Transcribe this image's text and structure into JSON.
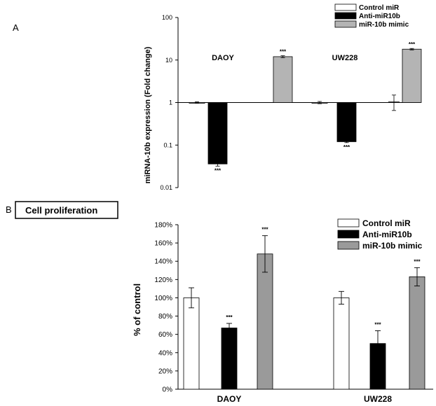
{
  "colors": {
    "control": "#ffffff",
    "anti": "#000000",
    "mimic": "#b4b4b4",
    "mimicB": "#9a9a9a"
  },
  "chart_data": [
    {
      "panel": "A",
      "type": "bar",
      "scale": "log",
      "ylabel": "miRNA-10b  expression (Fold change)",
      "ylim": [
        0.01,
        100
      ],
      "yticks": [
        "0.01",
        "0.1",
        "1",
        "10",
        "100"
      ],
      "categories": [
        "DAOY",
        "UW228"
      ],
      "series": [
        {
          "name": "Control miR",
          "values": [
            1.0,
            1.0
          ],
          "err": [
            0.04,
            0.06
          ]
        },
        {
          "name": "Anti-miR10b",
          "values": [
            0.036,
            0.12
          ],
          "err": [
            0.004,
            0.006
          ]
        },
        {
          "name": "miR-10b mimic",
          "values": [
            12,
            18
          ],
          "err": [
            0.6,
            0.7
          ]
        }
      ],
      "series_offset_note": "",
      "extra": {
        "UW228_control_mimic_pair": [
          1.0,
          1.05
        ],
        "UW228_mimic_small_bar_err": [
          0.65,
          1.5
        ]
      },
      "significance": [
        "***",
        "***",
        "***",
        "***"
      ],
      "legend_position": "top-right"
    },
    {
      "panel": "B",
      "type": "bar",
      "title": "Cell proliferation",
      "ylabel": "% of control",
      "ylim": [
        0,
        180
      ],
      "yticks": [
        "0%",
        "20%",
        "40%",
        "60%",
        "80%",
        "100%",
        "120%",
        "140%",
        "160%",
        "180%"
      ],
      "categories": [
        "DAOY",
        "UW228"
      ],
      "series": [
        {
          "name": "Control miR",
          "values": [
            100,
            100
          ],
          "err": [
            11,
            7
          ]
        },
        {
          "name": "Anti-miR10b",
          "values": [
            67,
            50
          ],
          "err": [
            5,
            14
          ]
        },
        {
          "name": "miR-10b mimic",
          "values": [
            148,
            123
          ],
          "err": [
            20,
            10
          ]
        }
      ],
      "significance": [
        "***",
        "***",
        "***",
        "***"
      ],
      "legend_position": "top-right"
    }
  ],
  "labels": {
    "panelA": "A",
    "panelB": "B",
    "titleB": "Cell proliferation",
    "sig": "***"
  }
}
